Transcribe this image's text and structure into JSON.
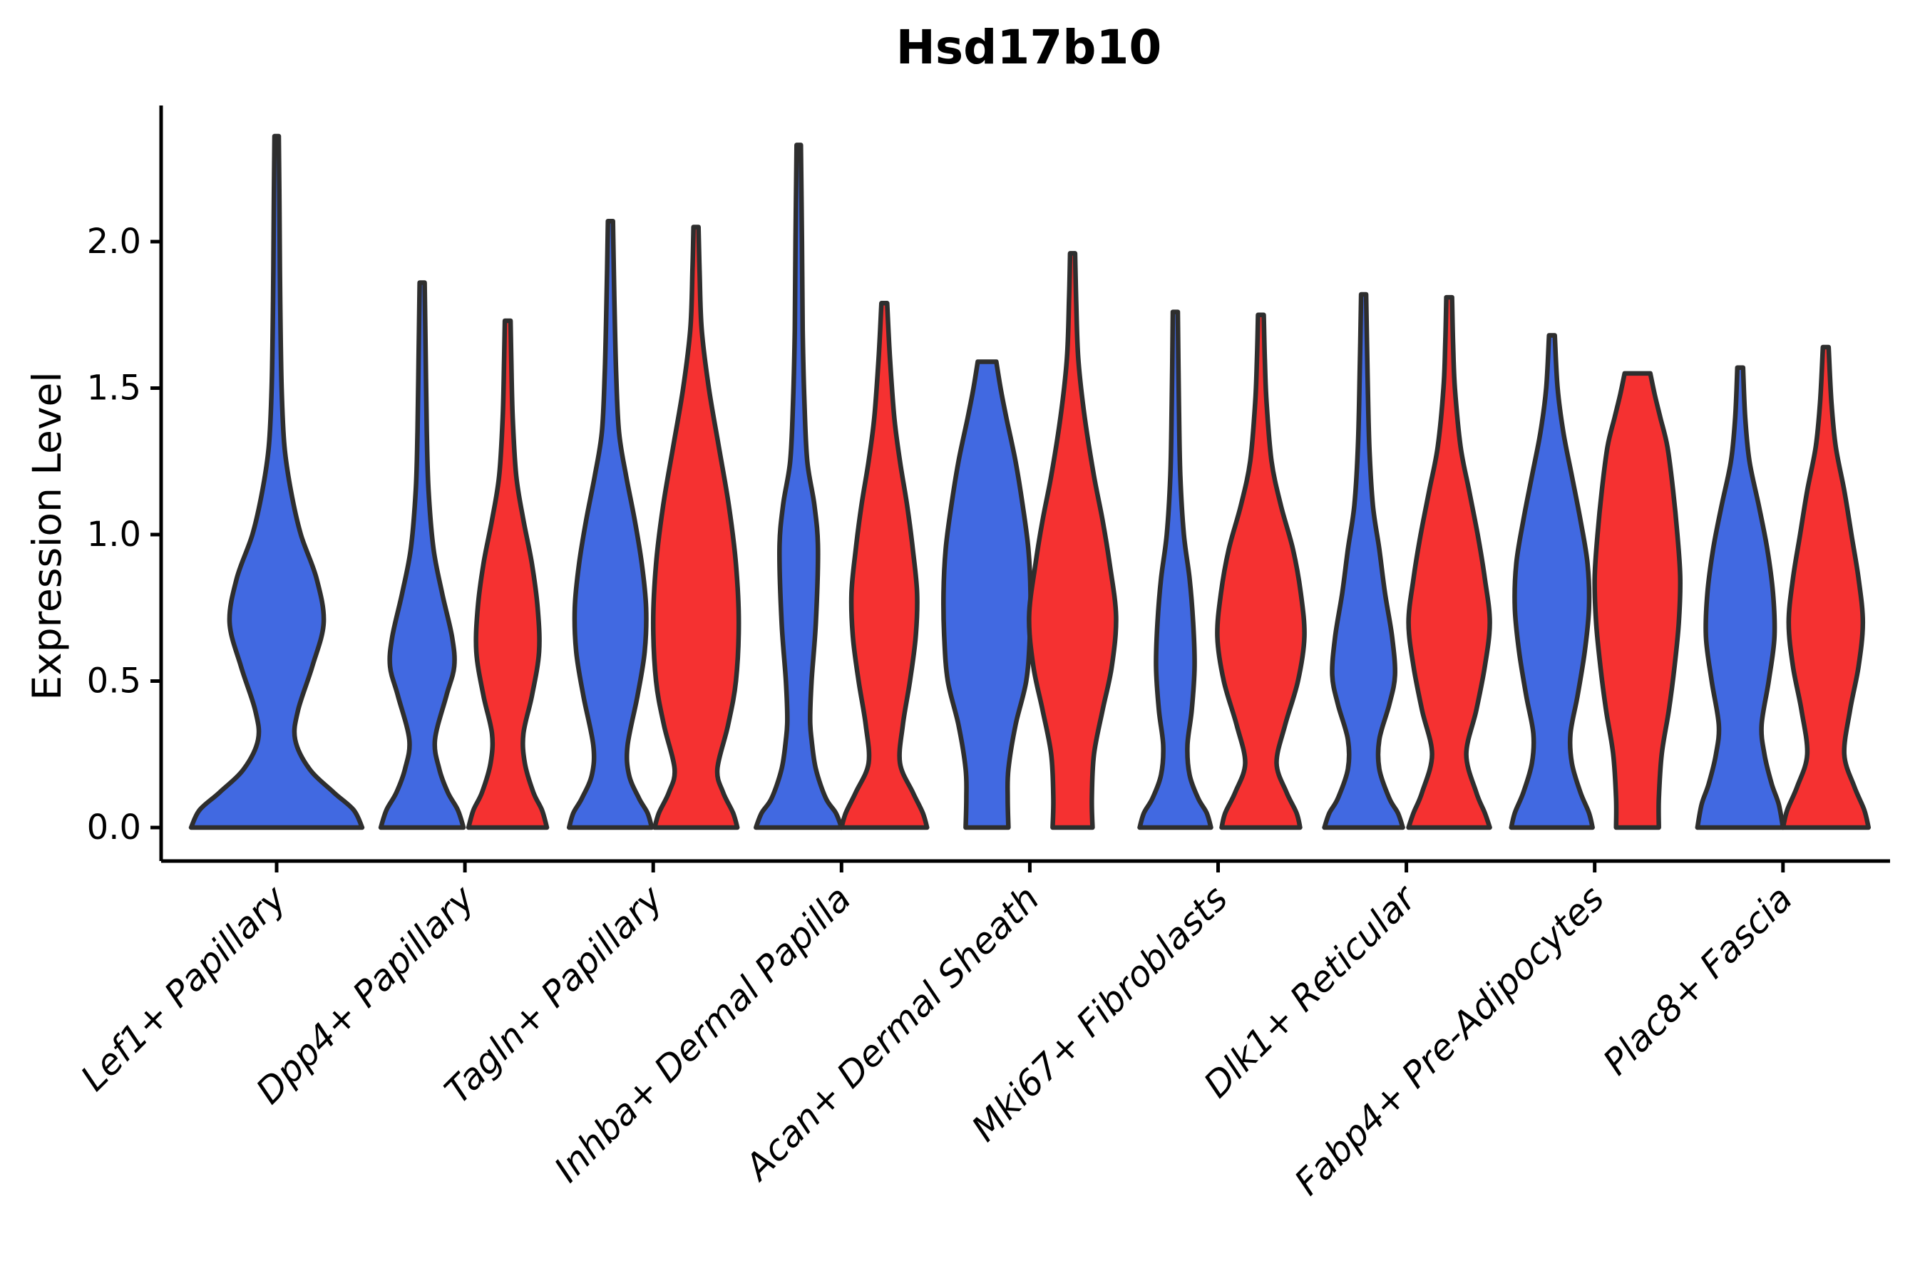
{
  "title": "Hsd17b10",
  "ylabel": "Expression Level",
  "colors": {
    "blue": "#4169E1",
    "red": "#F53131",
    "violin_outline": "#2E2E2E",
    "axis": "#000000",
    "background": "#FFFFFF"
  },
  "chart_data": {
    "type": "violin",
    "title": "Hsd17b10",
    "xlabel": "",
    "ylabel": "Expression Level",
    "ylim": [
      0,
      2.45
    ],
    "yticks": [
      0,
      0.5,
      1.0,
      1.5,
      2.0
    ],
    "grid": false,
    "legend": "none",
    "categories": [
      "Lef1+ Papillary",
      "Dpp4+ Papillary",
      "Tagln+ Papillary",
      "Inhba+ Dermal Papilla",
      "Acan+ Dermal Sheath",
      "Mki67+ Fibroblasts",
      "Dlk1+ Reticular",
      "Fabp4+ Pre-Adipocytes",
      "Plac8+ Fascia"
    ],
    "split_colors": {
      "blue": "#4169E1",
      "red": "#F53131"
    },
    "violins": [
      {
        "category_index": 0,
        "split": "blue",
        "single": true,
        "max_expression": 2.36,
        "flat_top": false,
        "profile": [
          [
            0,
            120
          ],
          [
            0.06,
            108
          ],
          [
            0.12,
            80
          ],
          [
            0.2,
            46
          ],
          [
            0.3,
            26
          ],
          [
            0.4,
            30
          ],
          [
            0.55,
            50
          ],
          [
            0.7,
            66
          ],
          [
            0.85,
            56
          ],
          [
            1.0,
            34
          ],
          [
            1.15,
            20
          ],
          [
            1.3,
            11
          ],
          [
            1.5,
            7
          ],
          [
            1.8,
            5
          ],
          [
            2.1,
            4
          ],
          [
            2.36,
            3
          ]
        ]
      },
      {
        "category_index": 1,
        "split": "blue",
        "single": false,
        "max_expression": 1.86,
        "flat_top": false,
        "profile": [
          [
            0,
            58
          ],
          [
            0.06,
            50
          ],
          [
            0.12,
            36
          ],
          [
            0.2,
            24
          ],
          [
            0.3,
            18
          ],
          [
            0.45,
            34
          ],
          [
            0.55,
            45
          ],
          [
            0.65,
            42
          ],
          [
            0.8,
            28
          ],
          [
            0.95,
            16
          ],
          [
            1.15,
            9
          ],
          [
            1.35,
            6.5
          ],
          [
            1.6,
            5
          ],
          [
            1.86,
            3.5
          ]
        ]
      },
      {
        "category_index": 1,
        "split": "red",
        "single": false,
        "max_expression": 1.73,
        "flat_top": false,
        "profile": [
          [
            0,
            55
          ],
          [
            0.06,
            48
          ],
          [
            0.12,
            36
          ],
          [
            0.22,
            24
          ],
          [
            0.32,
            22
          ],
          [
            0.45,
            34
          ],
          [
            0.6,
            44
          ],
          [
            0.75,
            42
          ],
          [
            0.9,
            34
          ],
          [
            1.05,
            22
          ],
          [
            1.2,
            12
          ],
          [
            1.4,
            7
          ],
          [
            1.6,
            5
          ],
          [
            1.73,
            4
          ]
        ]
      },
      {
        "category_index": 2,
        "split": "blue",
        "single": false,
        "max_expression": 2.07,
        "flat_top": false,
        "profile": [
          [
            0,
            58
          ],
          [
            0.05,
            52
          ],
          [
            0.1,
            40
          ],
          [
            0.18,
            26
          ],
          [
            0.28,
            24
          ],
          [
            0.45,
            38
          ],
          [
            0.6,
            48
          ],
          [
            0.75,
            50
          ],
          [
            0.9,
            44
          ],
          [
            1.05,
            34
          ],
          [
            1.2,
            22
          ],
          [
            1.35,
            12
          ],
          [
            1.55,
            8
          ],
          [
            1.8,
            5.5
          ],
          [
            2.07,
            3.5
          ]
        ]
      },
      {
        "category_index": 2,
        "split": "red",
        "single": false,
        "max_expression": 2.05,
        "flat_top": false,
        "profile": [
          [
            0,
            58
          ],
          [
            0.05,
            52
          ],
          [
            0.12,
            38
          ],
          [
            0.2,
            30
          ],
          [
            0.35,
            45
          ],
          [
            0.5,
            56
          ],
          [
            0.7,
            60
          ],
          [
            0.9,
            56
          ],
          [
            1.1,
            46
          ],
          [
            1.3,
            32
          ],
          [
            1.5,
            18
          ],
          [
            1.7,
            8
          ],
          [
            1.9,
            5
          ],
          [
            2.05,
            3.5
          ]
        ]
      },
      {
        "category_index": 3,
        "split": "blue",
        "single": false,
        "max_expression": 2.33,
        "flat_top": false,
        "profile": [
          [
            0,
            60
          ],
          [
            0.05,
            52
          ],
          [
            0.1,
            38
          ],
          [
            0.2,
            24
          ],
          [
            0.3,
            18
          ],
          [
            0.37,
            16
          ],
          [
            0.5,
            18
          ],
          [
            0.7,
            24
          ],
          [
            0.95,
            27
          ],
          [
            1.1,
            22
          ],
          [
            1.25,
            12
          ],
          [
            1.45,
            8
          ],
          [
            1.7,
            5.5
          ],
          [
            2.0,
            4.5
          ],
          [
            2.33,
            3
          ]
        ]
      },
      {
        "category_index": 3,
        "split": "red",
        "single": false,
        "max_expression": 1.79,
        "flat_top": false,
        "profile": [
          [
            0,
            60
          ],
          [
            0.05,
            54
          ],
          [
            0.12,
            40
          ],
          [
            0.22,
            22
          ],
          [
            0.35,
            26
          ],
          [
            0.5,
            36
          ],
          [
            0.65,
            44
          ],
          [
            0.8,
            46
          ],
          [
            0.95,
            40
          ],
          [
            1.1,
            32
          ],
          [
            1.25,
            22
          ],
          [
            1.4,
            14
          ],
          [
            1.6,
            8
          ],
          [
            1.79,
            4
          ]
        ]
      },
      {
        "category_index": 4,
        "split": "blue",
        "single": false,
        "max_expression": 1.59,
        "flat_top": true,
        "profile": [
          [
            0,
            30
          ],
          [
            0.1,
            29
          ],
          [
            0.2,
            30
          ],
          [
            0.35,
            40
          ],
          [
            0.5,
            55
          ],
          [
            0.65,
            60
          ],
          [
            0.8,
            61
          ],
          [
            0.95,
            58
          ],
          [
            1.1,
            50
          ],
          [
            1.25,
            40
          ],
          [
            1.4,
            27
          ],
          [
            1.5,
            19
          ],
          [
            1.59,
            13
          ]
        ]
      },
      {
        "category_index": 4,
        "split": "red",
        "single": false,
        "max_expression": 1.96,
        "flat_top": false,
        "profile": [
          [
            0,
            28
          ],
          [
            0.1,
            27
          ],
          [
            0.25,
            30
          ],
          [
            0.4,
            42
          ],
          [
            0.55,
            55
          ],
          [
            0.72,
            61
          ],
          [
            0.9,
            52
          ],
          [
            1.05,
            42
          ],
          [
            1.2,
            30
          ],
          [
            1.4,
            17
          ],
          [
            1.6,
            8
          ],
          [
            1.8,
            5
          ],
          [
            1.96,
            3.5
          ]
        ]
      },
      {
        "category_index": 5,
        "split": "blue",
        "single": false,
        "max_expression": 1.76,
        "flat_top": false,
        "profile": [
          [
            0,
            50
          ],
          [
            0.05,
            44
          ],
          [
            0.1,
            32
          ],
          [
            0.18,
            20
          ],
          [
            0.28,
            17
          ],
          [
            0.4,
            23
          ],
          [
            0.55,
            27
          ],
          [
            0.7,
            25
          ],
          [
            0.85,
            20
          ],
          [
            1.0,
            12
          ],
          [
            1.2,
            7
          ],
          [
            1.45,
            5
          ],
          [
            1.76,
            3.5
          ]
        ]
      },
      {
        "category_index": 5,
        "split": "red",
        "single": false,
        "max_expression": 1.75,
        "flat_top": false,
        "profile": [
          [
            0,
            55
          ],
          [
            0.05,
            50
          ],
          [
            0.12,
            36
          ],
          [
            0.22,
            22
          ],
          [
            0.35,
            34
          ],
          [
            0.5,
            52
          ],
          [
            0.65,
            61
          ],
          [
            0.8,
            56
          ],
          [
            0.95,
            45
          ],
          [
            1.1,
            28
          ],
          [
            1.25,
            15
          ],
          [
            1.45,
            8
          ],
          [
            1.6,
            5.5
          ],
          [
            1.75,
            4
          ]
        ]
      },
      {
        "category_index": 6,
        "split": "blue",
        "single": false,
        "max_expression": 1.82,
        "flat_top": false,
        "profile": [
          [
            0,
            55
          ],
          [
            0.05,
            48
          ],
          [
            0.1,
            36
          ],
          [
            0.2,
            22
          ],
          [
            0.3,
            22
          ],
          [
            0.42,
            36
          ],
          [
            0.52,
            44
          ],
          [
            0.65,
            40
          ],
          [
            0.8,
            30
          ],
          [
            0.95,
            22
          ],
          [
            1.1,
            13
          ],
          [
            1.3,
            8
          ],
          [
            1.55,
            5.5
          ],
          [
            1.82,
            3.5
          ]
        ]
      },
      {
        "category_index": 6,
        "split": "red",
        "single": false,
        "max_expression": 1.81,
        "flat_top": false,
        "profile": [
          [
            0,
            57
          ],
          [
            0.05,
            50
          ],
          [
            0.12,
            38
          ],
          [
            0.25,
            24
          ],
          [
            0.4,
            38
          ],
          [
            0.55,
            50
          ],
          [
            0.7,
            57
          ],
          [
            0.85,
            50
          ],
          [
            1.0,
            40
          ],
          [
            1.15,
            28
          ],
          [
            1.3,
            16
          ],
          [
            1.5,
            8
          ],
          [
            1.65,
            5.5
          ],
          [
            1.81,
            4
          ]
        ]
      },
      {
        "category_index": 7,
        "split": "blue",
        "single": false,
        "max_expression": 1.68,
        "flat_top": false,
        "profile": [
          [
            0,
            57
          ],
          [
            0.05,
            52
          ],
          [
            0.12,
            40
          ],
          [
            0.22,
            28
          ],
          [
            0.32,
            26
          ],
          [
            0.45,
            36
          ],
          [
            0.6,
            46
          ],
          [
            0.75,
            52
          ],
          [
            0.9,
            50
          ],
          [
            1.05,
            40
          ],
          [
            1.2,
            28
          ],
          [
            1.35,
            16
          ],
          [
            1.5,
            8
          ],
          [
            1.68,
            4
          ]
        ]
      },
      {
        "category_index": 7,
        "split": "red",
        "single": false,
        "max_expression": 1.55,
        "flat_top": true,
        "profile": [
          [
            0,
            30
          ],
          [
            0.1,
            30
          ],
          [
            0.25,
            34
          ],
          [
            0.4,
            44
          ],
          [
            0.55,
            52
          ],
          [
            0.7,
            58
          ],
          [
            0.85,
            60
          ],
          [
            1.0,
            56
          ],
          [
            1.15,
            50
          ],
          [
            1.3,
            42
          ],
          [
            1.4,
            32
          ],
          [
            1.48,
            24
          ],
          [
            1.55,
            18
          ]
        ]
      },
      {
        "category_index": 8,
        "split": "blue",
        "single": false,
        "max_expression": 1.57,
        "flat_top": false,
        "profile": [
          [
            0,
            60
          ],
          [
            0.08,
            54
          ],
          [
            0.15,
            44
          ],
          [
            0.25,
            34
          ],
          [
            0.35,
            30
          ],
          [
            0.5,
            40
          ],
          [
            0.65,
            48
          ],
          [
            0.8,
            46
          ],
          [
            0.95,
            38
          ],
          [
            1.1,
            26
          ],
          [
            1.25,
            13
          ],
          [
            1.4,
            7
          ],
          [
            1.57,
            4
          ]
        ]
      },
      {
        "category_index": 8,
        "split": "red",
        "single": false,
        "max_expression": 1.64,
        "flat_top": false,
        "profile": [
          [
            0,
            60
          ],
          [
            0.06,
            54
          ],
          [
            0.14,
            40
          ],
          [
            0.25,
            26
          ],
          [
            0.4,
            34
          ],
          [
            0.55,
            46
          ],
          [
            0.7,
            52
          ],
          [
            0.85,
            46
          ],
          [
            1.0,
            36
          ],
          [
            1.15,
            26
          ],
          [
            1.3,
            14
          ],
          [
            1.45,
            8
          ],
          [
            1.64,
            4
          ]
        ]
      }
    ]
  }
}
